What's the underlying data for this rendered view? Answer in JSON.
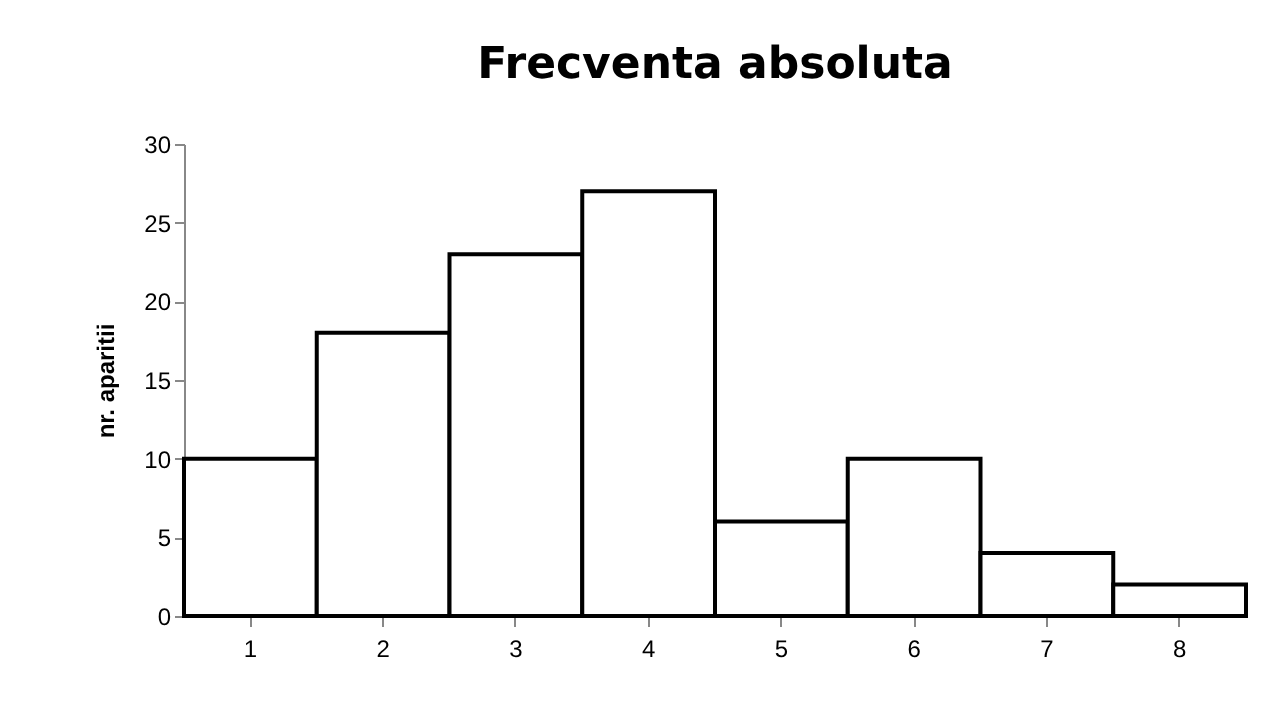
{
  "chart_data": {
    "type": "bar",
    "title": "Frecventa absoluta",
    "ylabel": "nr. aparitii",
    "categories": [
      "1",
      "2",
      "3",
      "4",
      "5",
      "6",
      "7",
      "8"
    ],
    "values": [
      10,
      18,
      23,
      27,
      6,
      10,
      4,
      2
    ],
    "color": "#ffffff",
    "ylim": [
      0,
      30
    ],
    "yticks": [
      0,
      5,
      10,
      15,
      20,
      25,
      30
    ],
    "grid": false
  }
}
